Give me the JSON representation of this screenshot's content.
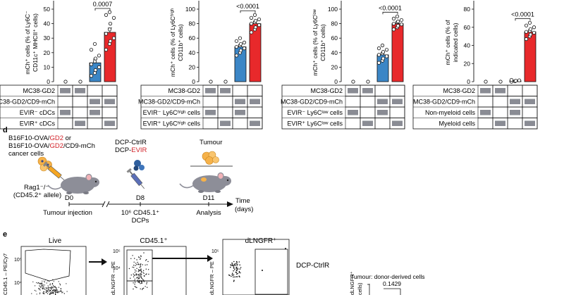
{
  "bar_panels": [
    {
      "id": "cdc",
      "ylabel_lines": [
        "mCh⁺ cells (% of Ly6C⁻",
        "CD11c⁺ MHCII⁺ cells)"
      ],
      "yticks": [
        "50",
        "40",
        "30",
        "20",
        "10",
        "0"
      ],
      "pvalues": [
        {
          "text": "0.0007",
          "from": 2,
          "to": 3
        }
      ],
      "groups": [
        {
          "mean": 0,
          "err": 0,
          "color": "#ffffff",
          "points": [
            0
          ]
        },
        {
          "mean": 0,
          "err": 0,
          "color": "#ffffff",
          "points": [
            0
          ]
        },
        {
          "mean": 13,
          "err": 2.5,
          "color": "#3b86c6",
          "points": [
            4,
            6,
            8,
            10,
            12,
            14,
            16,
            18,
            22,
            26
          ]
        },
        {
          "mean": 34,
          "err": 3,
          "color": "#e8292b",
          "points": [
            22,
            26,
            28,
            30,
            33,
            36,
            40,
            44,
            46,
            48
          ]
        }
      ],
      "rows": [
        {
          "label": "MC38-GD2",
          "on": [
            1,
            1,
            0,
            0
          ]
        },
        {
          "label": "MC38-GD2/CD9-mCh",
          "on": [
            0,
            0,
            1,
            1
          ]
        },
        {
          "label": "EVIR⁻ cDCs",
          "on": [
            1,
            0,
            1,
            0
          ]
        },
        {
          "label": "EVIR⁺ cDCs",
          "on": [
            0,
            1,
            0,
            1
          ]
        }
      ]
    },
    {
      "id": "ly6chigh",
      "ylabel_lines": [
        "mCh⁺ cells (% of Ly6Cʰⁱᵍʰ",
        "CD11b⁺ cells)"
      ],
      "yticks": [
        "100",
        "80",
        "60",
        "40",
        "20",
        "0"
      ],
      "pvalues": [
        {
          "text": "<0.0001",
          "from": 2,
          "to": 3
        }
      ],
      "groups": [
        {
          "mean": 0,
          "err": 0,
          "color": "#ffffff",
          "points": [
            0
          ]
        },
        {
          "mean": 0,
          "err": 0,
          "color": "#ffffff",
          "points": [
            0
          ]
        },
        {
          "mean": 48,
          "err": 3,
          "color": "#3b86c6",
          "points": [
            36,
            40,
            43,
            46,
            48,
            50,
            52,
            54,
            56,
            60
          ]
        },
        {
          "mean": 80,
          "err": 3,
          "color": "#e8292b",
          "points": [
            68,
            72,
            75,
            78,
            80,
            82,
            84,
            86,
            88,
            92
          ]
        }
      ],
      "rows": [
        {
          "label": "MC38-GD2",
          "on": [
            1,
            1,
            0,
            0
          ]
        },
        {
          "label": "MC38-GD2/CD9-mCh",
          "on": [
            0,
            0,
            1,
            1
          ]
        },
        {
          "label": "EVIR⁻ Ly6Cʰⁱᵍʰ cells",
          "on": [
            1,
            0,
            1,
            0
          ]
        },
        {
          "label": "EVIR⁺ Ly6Cʰⁱᵍʰ cells",
          "on": [
            0,
            1,
            0,
            1
          ]
        }
      ]
    },
    {
      "id": "ly6clow",
      "ylabel_lines": [
        "mCh⁺ cells (% of Ly6Cˡᵒʷ",
        "CD11b⁺ cells)"
      ],
      "yticks": [
        "100",
        "80",
        "60",
        "40",
        "20",
        "0"
      ],
      "pvalues": [
        {
          "text": "<0.0001",
          "from": 2,
          "to": 3
        }
      ],
      "groups": [
        {
          "mean": 0,
          "err": 0,
          "color": "#ffffff",
          "points": [
            0
          ]
        },
        {
          "mean": 0,
          "err": 0,
          "color": "#ffffff",
          "points": [
            0
          ]
        },
        {
          "mean": 37,
          "err": 3,
          "color": "#3b86c6",
          "points": [
            26,
            29,
            32,
            35,
            37,
            39,
            41,
            44,
            46,
            50
          ]
        },
        {
          "mean": 80,
          "err": 2,
          "color": "#e8292b",
          "points": [
            72,
            75,
            77,
            79,
            80,
            82,
            83,
            85,
            87,
            90
          ]
        }
      ],
      "rows": [
        {
          "label": "MC38-GD2",
          "on": [
            1,
            1,
            0,
            0
          ]
        },
        {
          "label": "MC38-GD2/CD9-mCh",
          "on": [
            0,
            0,
            1,
            1
          ]
        },
        {
          "label": "EVIR⁻ Ly6Cˡᵒʷ cells",
          "on": [
            1,
            0,
            1,
            0
          ]
        },
        {
          "label": "EVIR⁺ Ly6Cˡᵒʷ cells",
          "on": [
            0,
            1,
            0,
            1
          ]
        }
      ]
    },
    {
      "id": "myeloid",
      "ylabel_lines": [
        "mCh⁺ cells (% of",
        "indicated cells)"
      ],
      "yticks": [
        "80",
        "60",
        "40",
        "20",
        "0"
      ],
      "pvalues": [
        {
          "text": "<0.0001",
          "from": 2,
          "to": 3
        }
      ],
      "groups": [
        {
          "mean": 0,
          "err": 0,
          "color": "#ffffff",
          "points": [
            0
          ]
        },
        {
          "mean": 0,
          "err": 0,
          "color": "#ffffff",
          "points": [
            0
          ]
        },
        {
          "mean": 1,
          "err": 0.5,
          "color": "#ffffff",
          "points": [
            0,
            0.5,
            1,
            1.5,
            2
          ]
        },
        {
          "mean": 55,
          "err": 2,
          "color": "#e8292b",
          "points": [
            47,
            50,
            52,
            54,
            55,
            56,
            58,
            60,
            62,
            65
          ]
        }
      ],
      "rows": [
        {
          "label": "MC38-GD2",
          "on": [
            1,
            1,
            0,
            0
          ]
        },
        {
          "label": "MC38-GD2/CD9-mCh",
          "on": [
            0,
            0,
            1,
            1
          ]
        },
        {
          "label": "Non-myeloid cells",
          "on": [
            1,
            0,
            1,
            0
          ]
        },
        {
          "label": "Myeloid cells",
          "on": [
            0,
            1,
            0,
            1
          ]
        }
      ]
    }
  ],
  "panel_d": {
    "letter": "d",
    "tumour_cells_lines": [
      "B16F10-OVA/GD2 or",
      "B16F10-OVA/GD2/CD9-mCh",
      "cancer cells"
    ],
    "mouse_label": [
      "Rag1⁻/⁻",
      "(CD45.2⁺ allele)"
    ],
    "dcp_labels": [
      "DCP-CtrlR",
      "DCP-EVIR"
    ],
    "tumour_label": "Tumour",
    "timepoints": [
      "D0",
      "D8",
      "D11"
    ],
    "events": [
      "Tumour injection",
      "10⁶ CD45.1⁺",
      "DCPs",
      "Analysis"
    ],
    "time_axis_label": [
      "Time",
      "(days)"
    ],
    "colors": {
      "gd2_red": "#d2232a",
      "syringe_orange": "#f5a623",
      "dcp_blue": "#2f5f9e",
      "tumour_orange": "#f6b24a"
    }
  },
  "panel_e": {
    "letter": "e",
    "gate_titles": [
      "Live",
      "CD45.1⁺",
      "dLNGFR⁺"
    ],
    "y_axis_labels": [
      "CD45.1 – PE/Cy7",
      "dLNGFR – PE",
      "dLNGFR – PE"
    ],
    "tick_labels": [
      "10⁵",
      "10⁴",
      "10⁵",
      "10⁴",
      "10⁵"
    ],
    "row_label": "DCP-CtrlR",
    "inset_title": "Tumour: donor-derived cells",
    "inset_ylabel": [
      "dLNGFR⁺",
      "cells)"
    ],
    "inset_pvalue": "0.1429"
  }
}
